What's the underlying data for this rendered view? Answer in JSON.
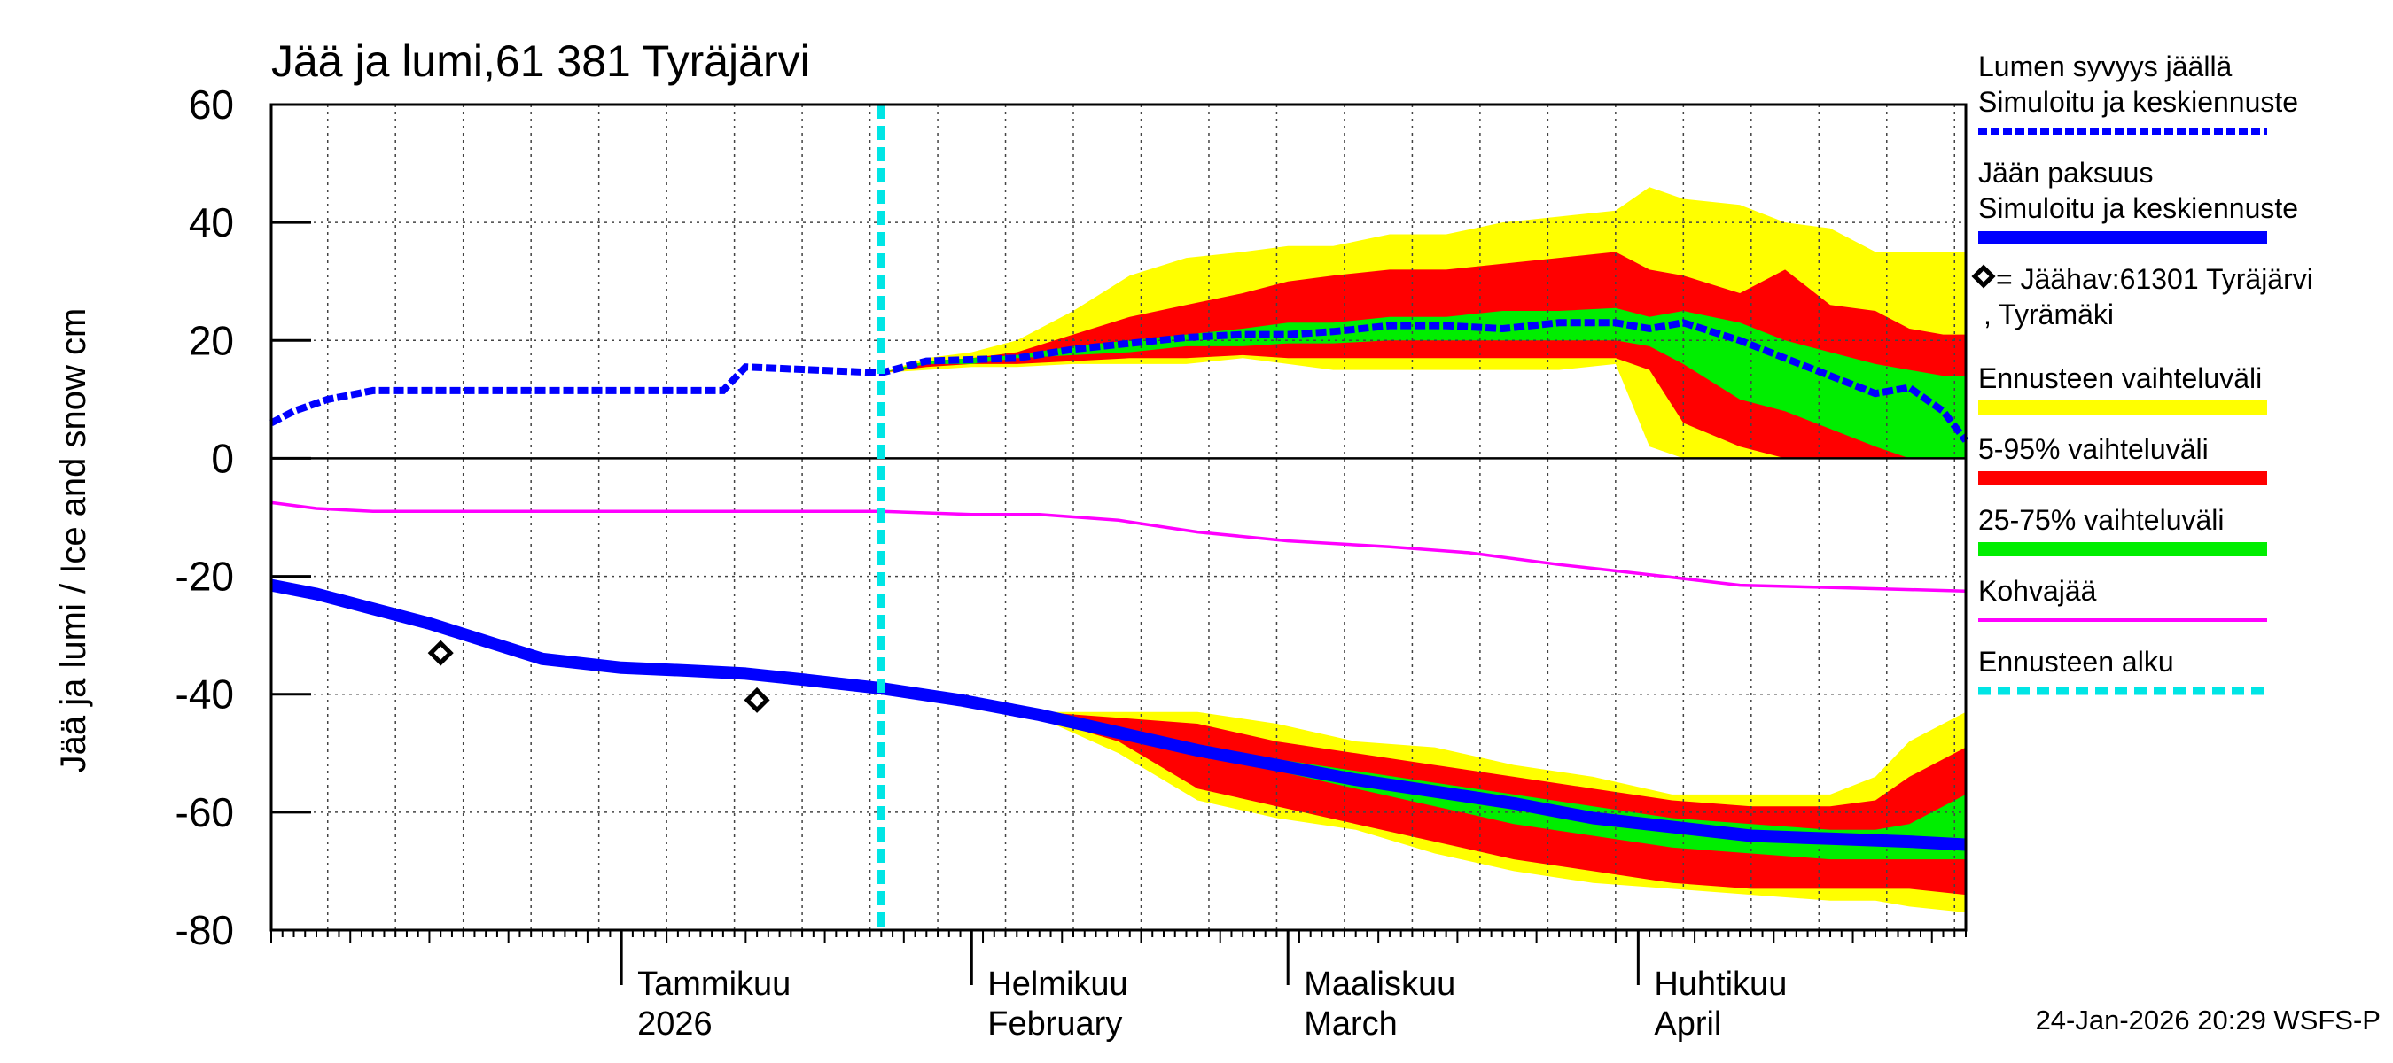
{
  "chart_data": {
    "type": "area",
    "title": "Jää ja lumi,61 381 Tyräjärvi",
    "ylabel": "Jää ja lumi / Ice and snow    cm",
    "ylim": [
      -80,
      60
    ],
    "yticks": [
      "60",
      "40",
      "20",
      "0",
      "-20",
      "-40",
      "-60",
      "-80"
    ],
    "ytick_values": [
      60,
      40,
      20,
      0,
      -20,
      -40,
      -60,
      -80
    ],
    "xlim": [
      "2025-12-01",
      "2026-04-30"
    ],
    "month_labels": [
      {
        "date": "2026-01-01",
        "fi": "Tammikuu",
        "en": "2026"
      },
      {
        "date": "2026-02-01",
        "fi": "Helmikuu",
        "en": "February"
      },
      {
        "date": "2026-03-01",
        "fi": "Maaliskuu",
        "en": "March"
      },
      {
        "date": "2026-04-01",
        "fi": "Huhtikuu",
        "en": "April"
      }
    ],
    "grid": true,
    "legend_position": "right",
    "forecast_start": "2026-01-24",
    "timestamp": "24-Jan-2026 20:29 WSFS-P",
    "legend": [
      {
        "label1": "Lumen syvyys jäällä",
        "label2": "Simuloitu ja keskiennuste",
        "color": "#0000ff",
        "style": "dashed"
      },
      {
        "label1": "Jään paksuus",
        "label2": "Simuloitu ja keskiennuste",
        "color": "#0000ff",
        "style": "solid"
      },
      {
        "label1": "= Jäähav:61301 Tyräjärvi",
        "label2": ", Tyrämäki",
        "color": "#000000",
        "style": "diamond"
      },
      {
        "label1": "Ennusteen vaihteluväli",
        "label2": "",
        "color": "#ffff00",
        "style": "band"
      },
      {
        "label1": "5-95% vaihteluväli",
        "label2": "",
        "color": "#ff0000",
        "style": "band"
      },
      {
        "label1": "25-75% vaihteluväli",
        "label2": "",
        "color": "#00ee00",
        "style": "band"
      },
      {
        "label1": "Kohvajää",
        "label2": "",
        "color": "#ff00ff",
        "style": "solid-thin"
      },
      {
        "label1": "Ennusteen alku",
        "label2": "",
        "color": "#00e5e5",
        "style": "dashed-thick"
      }
    ],
    "series": [
      {
        "name": "Lumen syvyys jäällä – Simuloitu ja keskiennuste",
        "x": [
          "2025-12-01",
          "2025-12-03",
          "2025-12-06",
          "2025-12-10",
          "2025-12-20",
          "2026-01-01",
          "2026-01-10",
          "2026-01-12",
          "2026-01-18",
          "2026-01-24",
          "2026-01-28",
          "2026-02-05",
          "2026-02-10",
          "2026-02-15",
          "2026-02-20",
          "2026-02-25",
          "2026-03-01",
          "2026-03-05",
          "2026-03-10",
          "2026-03-15",
          "2026-03-20",
          "2026-03-25",
          "2026-03-30",
          "2026-04-02",
          "2026-04-05",
          "2026-04-10",
          "2026-04-14",
          "2026-04-18",
          "2026-04-22",
          "2026-04-25",
          "2026-04-28",
          "2026-04-30"
        ],
        "y": [
          6,
          8,
          10,
          11.5,
          11.5,
          11.5,
          11.5,
          15.5,
          15,
          14.5,
          16.5,
          17,
          18.5,
          19.5,
          20.5,
          21,
          21,
          21.5,
          22.5,
          22.5,
          22,
          23,
          23,
          22,
          23,
          20,
          17,
          14,
          11,
          12,
          8,
          3
        ]
      },
      {
        "name": "Jään paksuus – Simuloitu ja keskiennuste",
        "x": [
          "2025-12-01",
          "2025-12-05",
          "2025-12-10",
          "2025-12-15",
          "2025-12-20",
          "2025-12-25",
          "2026-01-01",
          "2026-01-07",
          "2026-01-12",
          "2026-01-17",
          "2026-01-24",
          "2026-01-31",
          "2026-02-07",
          "2026-02-14",
          "2026-02-21",
          "2026-02-28",
          "2026-03-07",
          "2026-03-14",
          "2026-03-21",
          "2026-03-28",
          "2026-04-04",
          "2026-04-11",
          "2026-04-18",
          "2026-04-25",
          "2026-04-30"
        ],
        "y": [
          -21.5,
          -23,
          -25.5,
          -28,
          -31,
          -34,
          -35.5,
          -36,
          -36.5,
          -37.5,
          -39,
          -41,
          -43.5,
          -46.5,
          -49.5,
          -52,
          -54.5,
          -56.5,
          -58.5,
          -61,
          -62.5,
          -64,
          -64.5,
          -65,
          -65.5
        ]
      },
      {
        "name": "Kohvajää",
        "x": [
          "2025-12-01",
          "2025-12-05",
          "2025-12-10",
          "2026-01-24",
          "2026-02-01",
          "2026-02-07",
          "2026-02-14",
          "2026-02-21",
          "2026-03-01",
          "2026-03-10",
          "2026-03-17",
          "2026-03-25",
          "2026-04-01",
          "2026-04-10",
          "2026-04-20",
          "2026-04-30"
        ],
        "y": [
          -7.5,
          -8.5,
          -9,
          -9,
          -9.5,
          -9.5,
          -10.5,
          -12.5,
          -14,
          -15,
          -16,
          -18,
          -19.5,
          -21.5,
          -22,
          -22.5
        ]
      },
      {
        "name": "Jäähav:61301 Tyräjärvi, Tyrämäki",
        "x": [
          "2025-12-16",
          "2026-01-13"
        ],
        "y": [
          -33,
          -41
        ]
      }
    ],
    "snow_bands": {
      "x": [
        "2026-01-24",
        "2026-01-28",
        "2026-02-01",
        "2026-02-05",
        "2026-02-10",
        "2026-02-15",
        "2026-02-20",
        "2026-02-25",
        "2026-03-01",
        "2026-03-05",
        "2026-03-10",
        "2026-03-15",
        "2026-03-20",
        "2026-03-25",
        "2026-03-30",
        "2026-04-02",
        "2026-04-05",
        "2026-04-10",
        "2026-04-14",
        "2026-04-18",
        "2026-04-22",
        "2026-04-25",
        "2026-04-28",
        "2026-04-30"
      ],
      "yellow_low": [
        14.5,
        15,
        15.5,
        15.5,
        16,
        16,
        16,
        17,
        16,
        15,
        15,
        15,
        15,
        15,
        16,
        2,
        0,
        0,
        0,
        0,
        0,
        0,
        0,
        0
      ],
      "yellow_high": [
        14.5,
        17,
        18,
        20,
        25,
        31,
        34,
        35,
        36,
        36,
        38,
        38,
        40,
        41,
        42,
        46,
        44,
        43,
        40,
        39,
        35,
        35,
        35,
        35
      ],
      "red_low": [
        14.5,
        15.5,
        16,
        16,
        16.5,
        17,
        17,
        17.5,
        17,
        17,
        17,
        17,
        17,
        17,
        17,
        15,
        6,
        2,
        0,
        0,
        0,
        0,
        0,
        0
      ],
      "red_high": [
        14.5,
        16.5,
        17,
        18,
        21,
        24,
        26,
        28,
        30,
        31,
        32,
        32,
        33,
        34,
        35,
        32,
        31,
        28,
        32,
        26,
        25,
        22,
        21,
        21
      ],
      "green_low": [
        14.5,
        16,
        16,
        17,
        17.5,
        18,
        19,
        19,
        19.5,
        19.5,
        20,
        20,
        20,
        20,
        20,
        19,
        16,
        10,
        8,
        5,
        2,
        0,
        0,
        0
      ],
      "green_high": [
        14.5,
        16.5,
        17,
        17.5,
        19,
        20,
        21,
        22,
        23,
        23,
        24,
        24,
        25,
        25,
        25.5,
        24,
        25,
        23,
        20,
        18,
        16,
        15,
        14,
        14
      ]
    },
    "ice_bands": {
      "x": [
        "2026-01-24",
        "2026-01-31",
        "2026-02-07",
        "2026-02-14",
        "2026-02-21",
        "2026-02-28",
        "2026-03-07",
        "2026-03-14",
        "2026-03-21",
        "2026-03-28",
        "2026-04-04",
        "2026-04-11",
        "2026-04-18",
        "2026-04-22",
        "2026-04-25",
        "2026-04-30"
      ],
      "yellow_low": [
        -39,
        -41,
        -44,
        -50,
        -58,
        -61,
        -63,
        -67,
        -70,
        -72,
        -73,
        -74,
        -75,
        -75,
        -76,
        -77
      ],
      "yellow_high": [
        -39,
        -41,
        -43,
        -43,
        -43,
        -45,
        -48,
        -49,
        -52,
        -54,
        -57,
        -57,
        -57,
        -54,
        -48,
        -43
      ],
      "red_low": [
        -39,
        -41,
        -44,
        -48,
        -56,
        -59,
        -62,
        -65,
        -68,
        -70,
        -72,
        -73,
        -73,
        -73,
        -73,
        -74
      ],
      "red_high": [
        -39,
        -41,
        -43,
        -44,
        -45,
        -48,
        -50,
        -52,
        -54,
        -56,
        -58,
        -59,
        -59,
        -58,
        -54,
        -49
      ],
      "green_low": [
        -39,
        -41,
        -44,
        -47,
        -50,
        -53,
        -56,
        -59,
        -62,
        -64,
        -66,
        -67,
        -68,
        -68,
        -68,
        -68
      ],
      "green_high": [
        -39,
        -41,
        -43,
        -46,
        -49,
        -51,
        -53,
        -55,
        -57,
        -59,
        -61,
        -62,
        -63,
        -63,
        -62,
        -57
      ]
    }
  }
}
